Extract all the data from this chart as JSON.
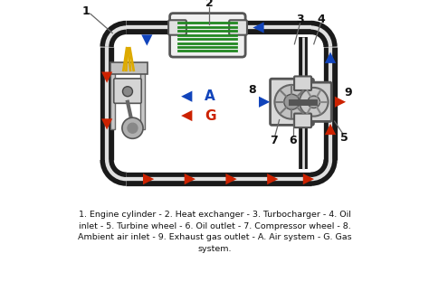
{
  "bg": "#ffffff",
  "pipe_dark": "#1a1a1a",
  "pipe_mid": "#888888",
  "pipe_light": "#e0e0e0",
  "pipe_lw": 11,
  "red": "#cc2200",
  "blue": "#1144bb",
  "green": "#228822",
  "label_fs": 8,
  "cap_fs": 6.8,
  "caption": "1. Engine cylinder - 2. Heat exchanger - 3. Turbocharger - 4. Oil\ninlet - 5. Turbine wheel - 6. Oil outlet - 7. Compressor wheel - 8.\nAmbient air inlet - 9. Exhaust gas outlet - A. Air system - G. Gas\nsystem.",
  "figsize": [
    4.74,
    3.22
  ],
  "dpi": 100,
  "xlim": [
    0,
    10
  ],
  "ylim": [
    0,
    7.5
  ]
}
